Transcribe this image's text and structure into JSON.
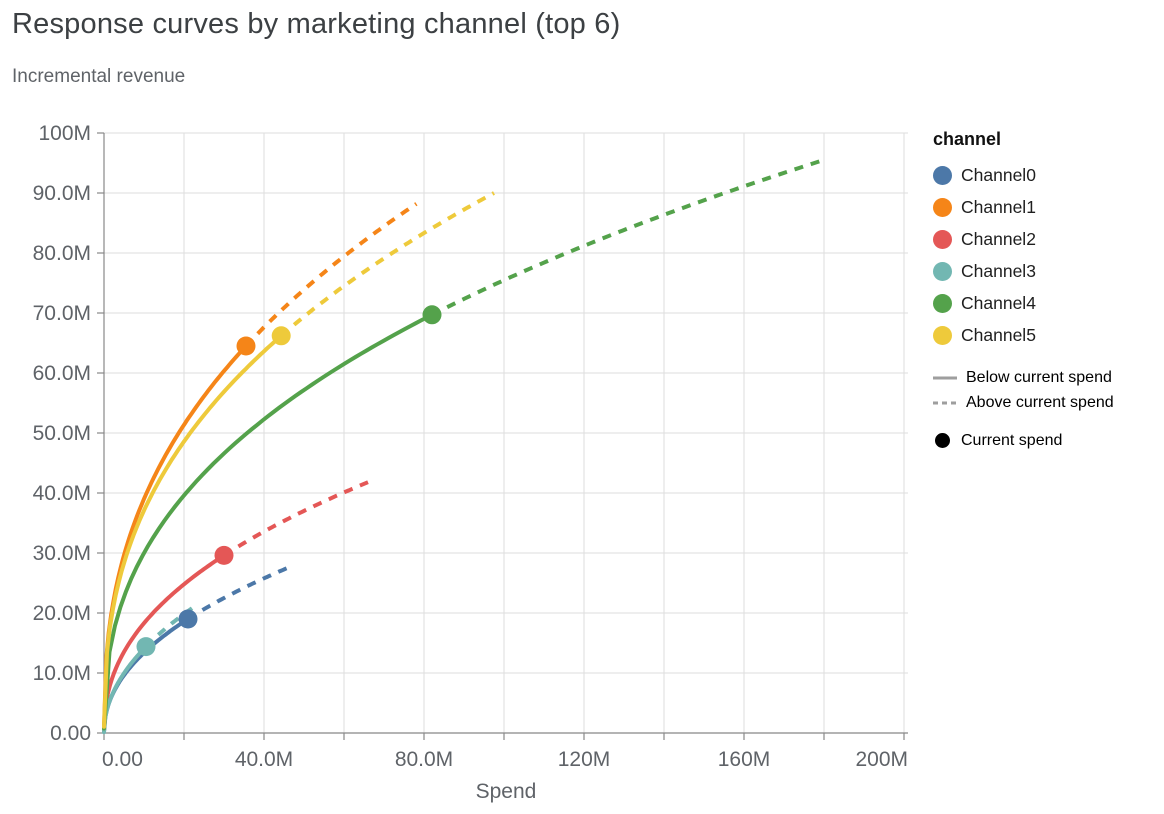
{
  "title": "Response curves by marketing channel (top 6)",
  "subtitle": "Incremental revenue",
  "x_axis": {
    "label": "Spend",
    "tick_labels": [
      "0.00",
      "40.0M",
      "80.0M",
      "120M",
      "160M",
      "200M"
    ],
    "tick_values_M": [
      0,
      40,
      80,
      120,
      160,
      200
    ],
    "minor_tick_step_M": 20,
    "range_M": [
      0,
      201
    ],
    "grid": true
  },
  "y_axis": {
    "tick_labels": [
      "0.00",
      "10.0M",
      "20.0M",
      "30.0M",
      "40.0M",
      "50.0M",
      "60.0M",
      "70.0M",
      "80.0M",
      "90.0M",
      "100M"
    ],
    "tick_values_M": [
      0,
      10,
      20,
      30,
      40,
      50,
      60,
      70,
      80,
      90,
      100
    ],
    "range_M": [
      0,
      100
    ],
    "grid": true
  },
  "legend": {
    "header": "channel",
    "channels": [
      {
        "label": "Channel0",
        "color": "#4c78a8"
      },
      {
        "label": "Channel1",
        "color": "#f58518"
      },
      {
        "label": "Channel2",
        "color": "#e45756"
      },
      {
        "label": "Channel3",
        "color": "#72b7b2"
      },
      {
        "label": "Channel4",
        "color": "#54a24b"
      },
      {
        "label": "Channel5",
        "color": "#eeca3b"
      }
    ],
    "line_styles": [
      {
        "label": "Below current spend",
        "dashed": false
      },
      {
        "label": "Above current spend",
        "dashed": true
      }
    ],
    "marker": {
      "label": "Current spend",
      "color": "#000000"
    }
  },
  "chart_data": {
    "type": "line",
    "title": "Response curves by marketing channel (top 6)",
    "subtitle": "Incremental revenue",
    "xlabel": "Spend",
    "ylabel": "Incremental revenue",
    "xlim_M": [
      0,
      201
    ],
    "ylim_M": [
      0,
      100
    ],
    "legend_position": "right",
    "grid": true,
    "line_semantics": {
      "solid": "Below current spend",
      "dashed": "Above current spend",
      "point": "Current spend"
    },
    "spend_multiplier_at_curve_end": 2.2,
    "series": [
      {
        "name": "Channel0",
        "color": "#4c78a8",
        "current_spend_M": 21.0,
        "current_revenue_M": 19.0,
        "end_spend_M": 46.2,
        "end_revenue_M": 27.6
      },
      {
        "name": "Channel1",
        "color": "#f58518",
        "current_spend_M": 35.5,
        "current_revenue_M": 64.5,
        "end_spend_M": 78.1,
        "end_revenue_M": 88.2
      },
      {
        "name": "Channel2",
        "color": "#e45756",
        "current_spend_M": 30.0,
        "current_revenue_M": 29.6,
        "end_spend_M": 66.0,
        "end_revenue_M": 41.8
      },
      {
        "name": "Channel3",
        "color": "#72b7b2",
        "current_spend_M": 10.5,
        "current_revenue_M": 14.4,
        "end_spend_M": 23.1,
        "end_revenue_M": 21.3
      },
      {
        "name": "Channel4",
        "color": "#54a24b",
        "current_spend_M": 82.0,
        "current_revenue_M": 69.7,
        "end_spend_M": 180.4,
        "end_revenue_M": 95.6
      },
      {
        "name": "Channel5",
        "color": "#eeca3b",
        "current_spend_M": 44.3,
        "current_revenue_M": 66.2,
        "end_spend_M": 97.5,
        "end_revenue_M": 90.0
      }
    ]
  },
  "style_colors": {
    "grid": "#dddddd",
    "axis": "#888888",
    "title": "#3c4043",
    "subtitle": "#5f6368",
    "tick_text": "#5f6368",
    "legend_text": "#1f1f1f",
    "legend_line": "#9e9e9e"
  }
}
